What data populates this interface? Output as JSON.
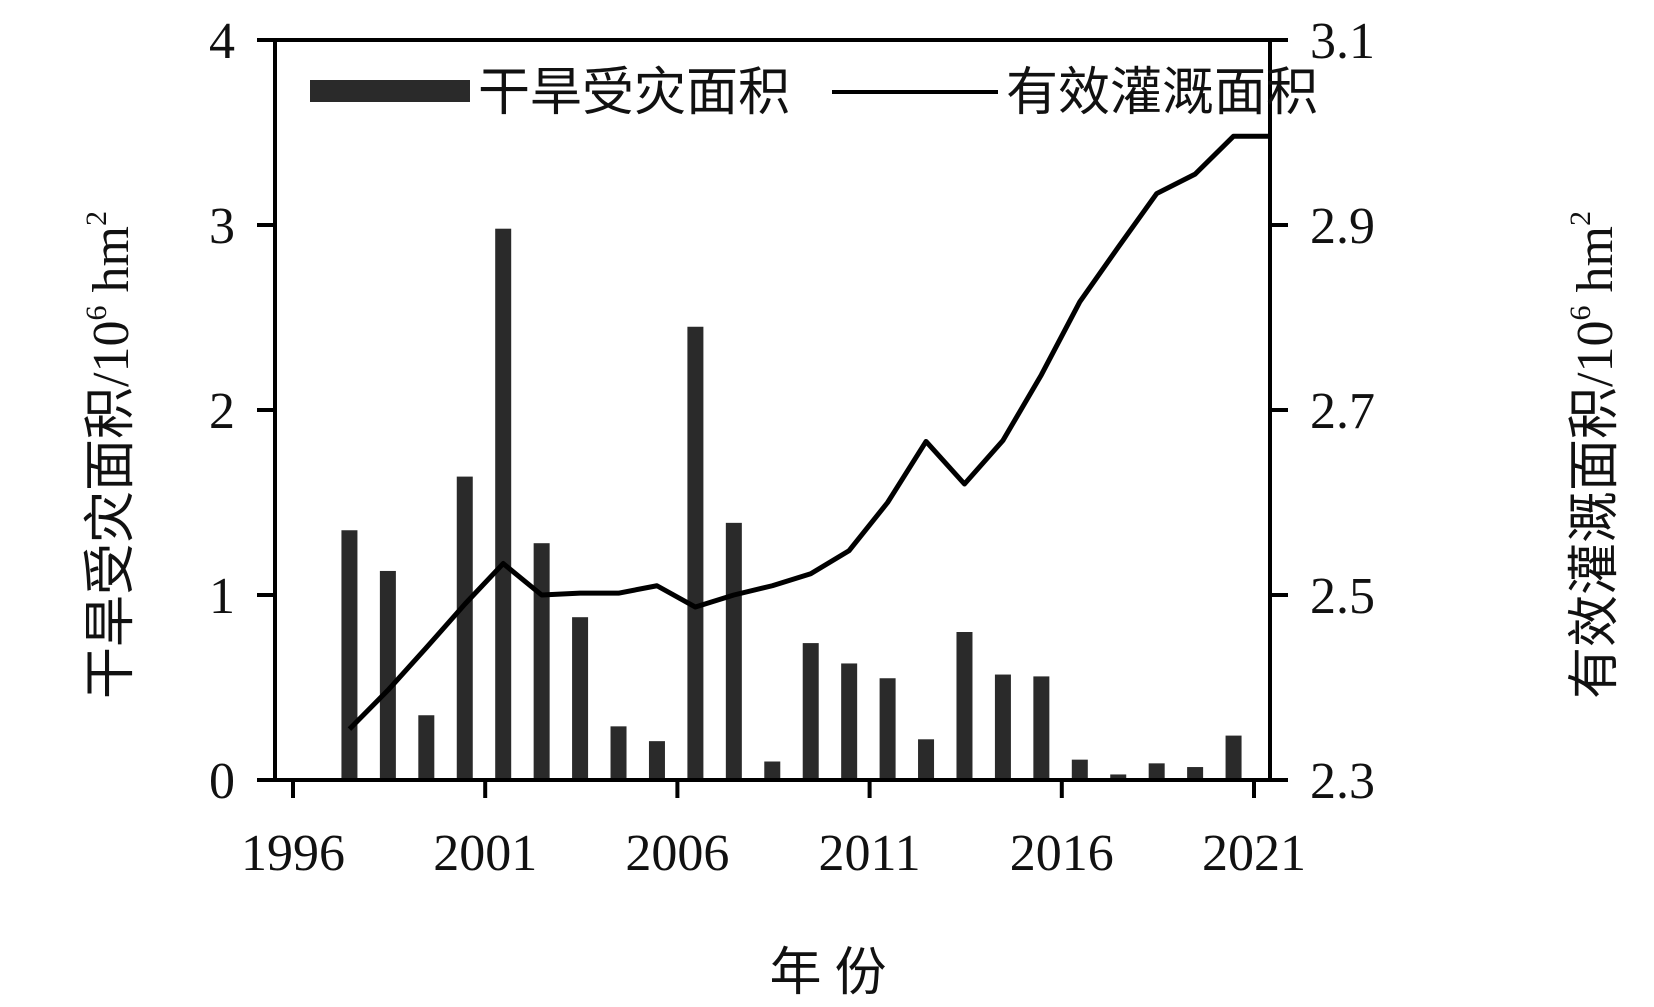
{
  "chart_data": {
    "type": "bar+line",
    "x_axis": {
      "label": "年 份",
      "range": [
        1996,
        2021
      ],
      "ticks": [
        "1996",
        "2001",
        "2006",
        "2011",
        "2016",
        "2021"
      ]
    },
    "y_left": {
      "label": "干旱受灾面积/10⁶ hm²",
      "label_main": "干旱受灾面积/10",
      "label_exp": "6",
      "label_unit": " hm",
      "label_unit_exp": "2",
      "range": [
        0,
        4
      ],
      "ticks": [
        "0",
        "1",
        "2",
        "3",
        "4"
      ]
    },
    "y_right": {
      "label": "有效灌溉面积/10⁶ hm²",
      "label_main": "有效灌溉面积/10",
      "label_exp": "6",
      "label_unit": " hm",
      "label_unit_exp": "2",
      "range": [
        2.3,
        3.1
      ],
      "ticks": [
        "2.3",
        "2.5",
        "2.7",
        "2.9",
        "3.1"
      ]
    },
    "legend_position": "top",
    "series": [
      {
        "name": "干旱受灾面积",
        "kind": "bar",
        "axis": "left",
        "color": "#2a2a2a",
        "x": [
          1997,
          1998,
          1999,
          2000,
          2001,
          2002,
          2003,
          2004,
          2005,
          2006,
          2007,
          2008,
          2009,
          2010,
          2011,
          2012,
          2013,
          2014,
          2015,
          2016,
          2017,
          2018,
          2019,
          2020
        ],
        "values": [
          1.35,
          1.13,
          0.35,
          1.64,
          2.98,
          1.28,
          0.88,
          0.29,
          0.21,
          2.45,
          1.39,
          0.1,
          0.74,
          0.63,
          0.55,
          0.22,
          0.8,
          0.57,
          0.56,
          0.11,
          0.03,
          0.09,
          0.07,
          0.24
        ]
      },
      {
        "name": "有效灌溉面积",
        "kind": "line",
        "axis": "right",
        "color": "#000000",
        "x": [
          1997,
          1998,
          1999,
          2000,
          2001,
          2002,
          2003,
          2004,
          2005,
          2006,
          2007,
          2008,
          2009,
          2010,
          2011,
          2012,
          2013,
          2014,
          2015,
          2016,
          2017,
          2018,
          2019,
          2020,
          2021
        ],
        "values": [
          2.355,
          2.397,
          2.443,
          2.49,
          2.534,
          2.5,
          2.502,
          2.502,
          2.51,
          2.487,
          2.5,
          2.51,
          2.523,
          2.548,
          2.6,
          2.666,
          2.62,
          2.667,
          2.738,
          2.817,
          2.876,
          2.934,
          2.955,
          2.996,
          2.996
        ]
      }
    ]
  }
}
